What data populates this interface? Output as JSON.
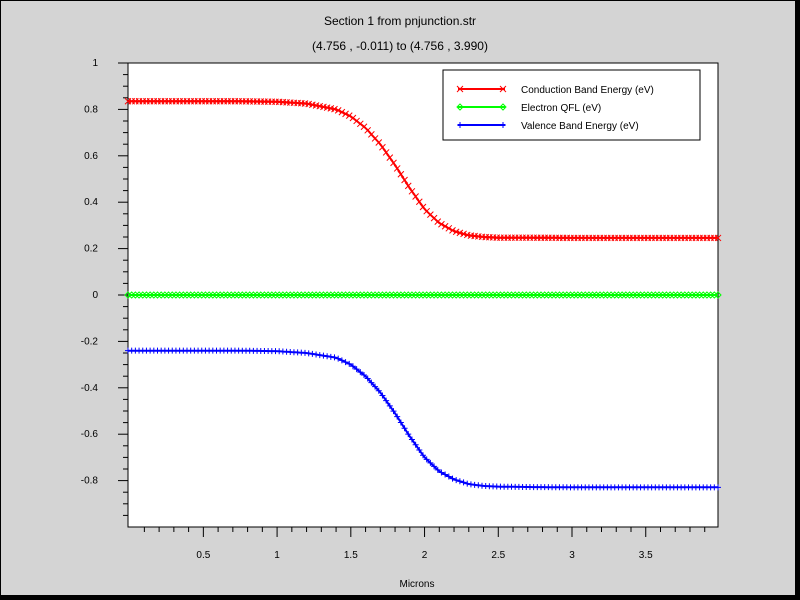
{
  "window": {
    "title": "Section 1 from pnjunction.str",
    "subtitle": "(4.756 , -0.011) to (4.756 , 3.990)"
  },
  "chart_data": {
    "type": "line",
    "title": "Section 1 from pnjunction.str",
    "subtitle": "(4.756 , -0.011) to (4.756 , 3.990)",
    "xlabel": "Microns",
    "ylabel": "",
    "xlim": [
      -0.011,
      3.99
    ],
    "ylim": [
      -1.0,
      1.0
    ],
    "xticks": [
      0.5,
      1,
      1.5,
      2,
      2.5,
      3,
      3.5
    ],
    "xtick_labels": [
      "0.5",
      "1",
      "1.5",
      "2",
      "2.5",
      "3",
      "3.5"
    ],
    "yticks": [
      1,
      0.8,
      0.6,
      0.4,
      0.2,
      0,
      -0.2,
      -0.4,
      -0.6,
      -0.8
    ],
    "ytick_labels": [
      "1",
      "0.8",
      "0.6",
      "0.4",
      "0.2",
      "0",
      "-0.2",
      "-0.4",
      "-0.6",
      "-0.8"
    ],
    "grid": false,
    "legend_position": "top-right",
    "series": [
      {
        "name": "Conduction Band Energy (eV)",
        "color": "#ff0000",
        "marker": "x",
        "x": [
          0.0,
          0.25,
          0.5,
          0.75,
          1.0,
          1.2,
          1.4,
          1.5,
          1.6,
          1.7,
          1.8,
          1.9,
          2.0,
          2.1,
          2.2,
          2.3,
          2.4,
          2.5,
          2.75,
          3.0,
          3.25,
          3.5,
          3.75,
          3.99
        ],
        "y": [
          0.835,
          0.835,
          0.835,
          0.835,
          0.833,
          0.825,
          0.8,
          0.77,
          0.72,
          0.65,
          0.56,
          0.46,
          0.37,
          0.31,
          0.275,
          0.257,
          0.25,
          0.247,
          0.247,
          0.246,
          0.246,
          0.246,
          0.246,
          0.246
        ]
      },
      {
        "name": "Electron QFL (eV)",
        "color": "#00ff00",
        "marker": "diamond",
        "x": [
          0.0,
          1.0,
          2.0,
          3.0,
          3.99
        ],
        "y": [
          0.0,
          0.0,
          0.0,
          0.0,
          0.0
        ]
      },
      {
        "name": "Valence Band Energy (eV)",
        "color": "#0000ff",
        "marker": "plus",
        "x": [
          0.0,
          0.25,
          0.5,
          0.75,
          1.0,
          1.2,
          1.4,
          1.5,
          1.6,
          1.7,
          1.8,
          1.9,
          2.0,
          2.1,
          2.2,
          2.3,
          2.4,
          2.5,
          2.75,
          3.0,
          3.25,
          3.5,
          3.75,
          3.99
        ],
        "y": [
          -0.24,
          -0.24,
          -0.24,
          -0.24,
          -0.242,
          -0.25,
          -0.27,
          -0.3,
          -0.35,
          -0.42,
          -0.51,
          -0.61,
          -0.7,
          -0.76,
          -0.795,
          -0.815,
          -0.823,
          -0.826,
          -0.828,
          -0.829,
          -0.829,
          -0.829,
          -0.829,
          -0.829
        ]
      }
    ]
  }
}
